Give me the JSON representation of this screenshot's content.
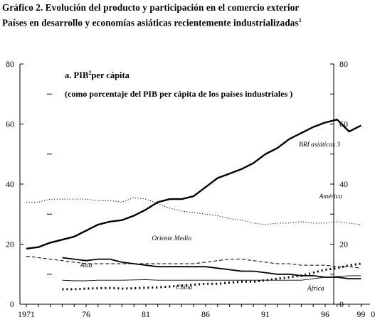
{
  "header": {
    "title_line1": "Gráfico 2. Evolución del producto y participación en el comercio exterior",
    "title_line2": "Países en desarrollo y economías asiáticas recientemente industrializadas",
    "title_line2_sup": "1"
  },
  "chart_data": {
    "type": "line",
    "panel_title": "a. PIB",
    "panel_title_sup": "2",
    "panel_title_rest": "per cápita",
    "panel_subtitle": "(como porcentaje del PIB per cápita de los países industriales )",
    "xlim": [
      1971,
      2001
    ],
    "ylim": [
      0,
      80
    ],
    "x_tick_labels": [
      {
        "x": 1971,
        "label": "1971"
      },
      {
        "x": 1976,
        "label": "76"
      },
      {
        "x": 1981,
        "label": "81"
      },
      {
        "x": 1986,
        "label": "86"
      },
      {
        "x": 1991,
        "label": "91"
      },
      {
        "x": 1996,
        "label": "96"
      },
      {
        "x": 1999,
        "label": "99"
      },
      {
        "x": 2000,
        "label": "0"
      }
    ],
    "y_ticks": [
      0,
      20,
      40,
      60,
      80
    ],
    "y_minor_ticks": [
      10,
      30,
      50,
      70
    ],
    "series": [
      {
        "name": "BRI asiáticas 3",
        "style": "solid-thick",
        "label_pos": {
          "x": 1993.8,
          "y": 52.5
        },
        "x": [
          1971,
          1972,
          1973,
          1974,
          1975,
          1976,
          1977,
          1978,
          1979,
          1980,
          1981,
          1982,
          1983,
          1984,
          1985,
          1986,
          1987,
          1988,
          1989,
          1990,
          1991,
          1992,
          1993,
          1994,
          1995,
          1996,
          1997,
          1998,
          1999
        ],
        "values": [
          18.5,
          19,
          20.5,
          21.5,
          22.5,
          24.5,
          26.5,
          27.5,
          28,
          29.5,
          31.5,
          34,
          35,
          35,
          36,
          39,
          42,
          43.5,
          45,
          47,
          50,
          52,
          55,
          57,
          59,
          60.5,
          61.5,
          57.5,
          59.5
        ]
      },
      {
        "name": "América",
        "style": "dotted",
        "label_pos": {
          "x": 1995.5,
          "y": 35.3
        },
        "x": [
          1971,
          1972,
          1973,
          1974,
          1975,
          1976,
          1977,
          1978,
          1979,
          1980,
          1981,
          1982,
          1983,
          1984,
          1985,
          1986,
          1987,
          1988,
          1989,
          1990,
          1991,
          1992,
          1993,
          1994,
          1995,
          1996,
          1997,
          1998,
          1999
        ],
        "values": [
          34,
          34,
          35,
          35,
          35,
          35,
          34.5,
          34.5,
          34,
          35.5,
          35,
          33.5,
          32,
          31,
          30.5,
          30,
          29.5,
          28.5,
          28,
          27,
          26.5,
          27,
          27,
          27.5,
          27,
          27,
          27.5,
          27,
          26.5
        ]
      },
      {
        "name": "Oriente Medio",
        "style": "dashed",
        "label_pos": {
          "x": 1981.5,
          "y": 21.3
        },
        "x": [
          1971,
          1972,
          1973,
          1974,
          1975,
          1976,
          1977,
          1978,
          1979,
          1980,
          1981,
          1982,
          1983,
          1984,
          1985,
          1986,
          1987,
          1988,
          1989,
          1990,
          1991,
          1992,
          1993,
          1994,
          1995,
          1996,
          1997,
          1998,
          1999,
          2000,
          2001
        ],
        "values": [
          16,
          15.5,
          15,
          14.5,
          14,
          13.5,
          13.5,
          13.5,
          13.5,
          13.5,
          13.5,
          13.5,
          13.5,
          13.5,
          13.5,
          14,
          14.5,
          15,
          15,
          14.5,
          14,
          13.5,
          13.5,
          13,
          13,
          13,
          12.5,
          12.5,
          12,
          11.5,
          11.5
        ]
      },
      {
        "name": "Asia",
        "style": "solid-medium",
        "label_pos": {
          "x": 1975.5,
          "y": 12.3
        },
        "x": [
          1974,
          1975,
          1976,
          1977,
          1978,
          1979,
          1980,
          1981,
          1982,
          1983,
          1984,
          1985,
          1986,
          1987,
          1988,
          1989,
          1990,
          1991,
          1992,
          1993,
          1994,
          1995,
          1996,
          1997,
          1998,
          1999,
          2000,
          2001
        ],
        "values": [
          15.5,
          15,
          14.5,
          15,
          15,
          14,
          13.5,
          13,
          12.5,
          12.5,
          12.5,
          12.5,
          12.5,
          12,
          11.5,
          11,
          11,
          10.5,
          10,
          10,
          9.5,
          9.5,
          9,
          9,
          8.5,
          8.5,
          8.5,
          8.5
        ]
      },
      {
        "name": "China",
        "style": "dotted-bold",
        "label_pos": {
          "x": 1983.5,
          "y": 5.0
        },
        "x": [
          1974,
          1975,
          1976,
          1977,
          1978,
          1979,
          1980,
          1981,
          1982,
          1983,
          1984,
          1985,
          1986,
          1987,
          1988,
          1989,
          1990,
          1991,
          1992,
          1993,
          1994,
          1995,
          1996,
          1997,
          1998,
          1999,
          2000,
          2001
        ],
        "values": [
          5,
          5,
          5.2,
          5.3,
          5.4,
          5.2,
          5.3,
          5.5,
          5.6,
          5.9,
          6.2,
          6.5,
          6.8,
          6.8,
          7.2,
          7.5,
          7.5,
          8,
          8.5,
          9,
          9.5,
          10.5,
          11.5,
          12,
          13,
          13.5,
          14,
          15
        ]
      },
      {
        "name": "África",
        "style": "solid-thin",
        "label_pos": {
          "x": 1994.5,
          "y": 4.6
        },
        "x": [
          1974,
          1975,
          1976,
          1977,
          1978,
          1979,
          1980,
          1981,
          1982,
          1983,
          1984,
          1985,
          1986,
          1987,
          1988,
          1989,
          1990,
          1991,
          1992,
          1993,
          1994,
          1995,
          1996,
          1997,
          1998,
          1999,
          2000,
          2001
        ],
        "values": [
          8,
          7.8,
          7.8,
          8,
          8,
          8,
          8.1,
          8.2,
          8,
          8,
          8,
          8,
          8,
          8,
          8,
          8,
          8,
          8,
          8,
          8,
          8,
          8.5,
          9,
          9.2,
          9.5,
          9.5,
          9.5,
          9.5
        ]
      }
    ]
  }
}
